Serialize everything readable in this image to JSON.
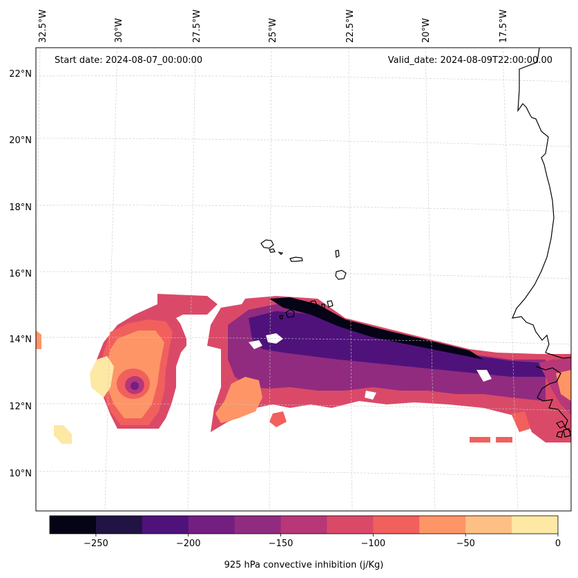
{
  "annotations": {
    "start_date": "Start date: 2024-08-07_00:00:00",
    "valid_date": "Valid_date: 2024-08-09T22:00:00.00"
  },
  "longitude_labels": [
    "32.5°W",
    "30°W",
    "27.5°W",
    "25°W",
    "22.5°W",
    "20°W",
    "17.5°W"
  ],
  "latitude_labels": [
    "22°N",
    "20°N",
    "18°N",
    "16°N",
    "14°N",
    "12°N",
    "10°N"
  ],
  "colorbar": {
    "label": "925 hPa convective inhibition (j/Kg)",
    "levels": [
      -275,
      -250,
      -225,
      -200,
      -175,
      -150,
      -125,
      -100,
      -75,
      -50,
      -25,
      0
    ],
    "tick_values": [
      -250,
      -200,
      -150,
      -100,
      -50,
      0
    ],
    "tick_labels": [
      "−250",
      "−200",
      "−150",
      "−100",
      "−50",
      "0"
    ],
    "colors": [
      "#050316",
      "#211343",
      "#4f127b",
      "#721f81",
      "#912b7f",
      "#b73779",
      "#da4a68",
      "#f1605d",
      "#fd9567",
      "#febf84",
      "#fde8a4"
    ]
  },
  "colormap": "magma",
  "gridlines": "dashed light gray"
}
